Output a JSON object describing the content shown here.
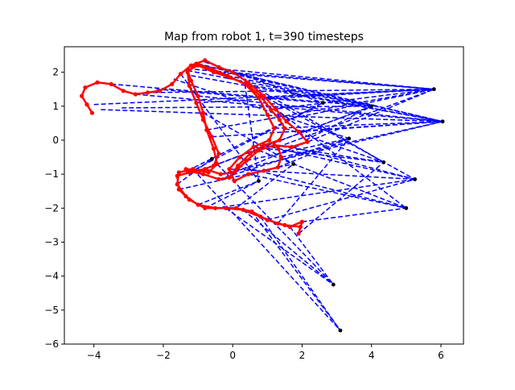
{
  "chart_data": {
    "type": "scatter",
    "title": "Map from robot 1, t=390 timesteps",
    "xlabel": "",
    "ylabel": "",
    "xlim": [
      -4.85,
      6.65
    ],
    "ylim": [
      -6.0,
      2.75
    ],
    "xticks": [
      -4,
      -2,
      0,
      2,
      4,
      6
    ],
    "yticks": [
      -6,
      -5,
      -4,
      -3,
      -2,
      -1,
      0,
      1,
      2
    ],
    "grid": false,
    "colors": {
      "trajectory": "#ff0000",
      "landmarks": "#000000",
      "observations": "#0000ff"
    },
    "landmarks": [
      [
        5.8,
        1.5
      ],
      [
        6.05,
        0.55
      ],
      [
        4.0,
        1.0
      ],
      [
        2.6,
        1.1
      ],
      [
        3.35,
        0.05
      ],
      [
        4.35,
        -0.65
      ],
      [
        5.25,
        -1.15
      ],
      [
        5.0,
        -2.0
      ],
      [
        1.75,
        -0.7
      ],
      [
        0.75,
        -1.2
      ],
      [
        -0.6,
        -0.55
      ],
      [
        2.9,
        -4.25
      ],
      [
        3.1,
        -5.6
      ]
    ],
    "trajectory": [
      [
        -4.05,
        0.8
      ],
      [
        -4.2,
        1.05
      ],
      [
        -4.35,
        1.3
      ],
      [
        -4.25,
        1.55
      ],
      [
        -3.9,
        1.7
      ],
      [
        -3.5,
        1.65
      ],
      [
        -3.15,
        1.45
      ],
      [
        -2.8,
        1.35
      ],
      [
        -2.45,
        1.4
      ],
      [
        -2.1,
        1.45
      ],
      [
        -1.75,
        1.65
      ],
      [
        -1.5,
        1.95
      ],
      [
        -1.2,
        2.2
      ],
      [
        -0.8,
        2.35
      ],
      [
        -0.4,
        2.15
      ],
      [
        0.0,
        2.0
      ],
      [
        0.45,
        1.7
      ],
      [
        0.9,
        1.3
      ],
      [
        1.25,
        0.9
      ],
      [
        1.55,
        0.55
      ],
      [
        1.9,
        0.25
      ],
      [
        2.15,
        -0.05
      ],
      [
        1.7,
        -0.2
      ],
      [
        1.2,
        -0.15
      ],
      [
        0.75,
        -0.3
      ],
      [
        0.4,
        -0.6
      ],
      [
        0.05,
        -0.95
      ],
      [
        -0.35,
        -1.0
      ],
      [
        -0.8,
        -0.85
      ],
      [
        -1.25,
        -0.95
      ],
      [
        -1.6,
        -1.05
      ],
      [
        -1.55,
        -1.45
      ],
      [
        -1.25,
        -1.75
      ],
      [
        -0.8,
        -2.0
      ],
      [
        -0.2,
        -2.0
      ],
      [
        0.3,
        -2.05
      ],
      [
        0.8,
        -2.25
      ],
      [
        1.3,
        -2.45
      ],
      [
        1.65,
        -2.55
      ],
      [
        2.0,
        -2.4
      ],
      [
        1.9,
        -2.75
      ],
      [
        1.95,
        -2.55
      ],
      [
        1.5,
        -2.5
      ],
      [
        1.0,
        -2.35
      ],
      [
        0.55,
        -2.1
      ],
      [
        0.1,
        -2.0
      ],
      [
        -0.5,
        -2.0
      ],
      [
        -1.0,
        -1.9
      ],
      [
        -1.35,
        -1.65
      ],
      [
        -1.6,
        -1.3
      ],
      [
        -1.55,
        -0.95
      ],
      [
        -1.15,
        -0.85
      ],
      [
        -0.7,
        -0.95
      ],
      [
        -0.45,
        -0.7
      ],
      [
        -0.55,
        -0.25
      ],
      [
        -0.75,
        0.3
      ],
      [
        -0.85,
        0.8
      ],
      [
        -1.0,
        1.3
      ],
      [
        -1.2,
        1.75
      ],
      [
        -1.3,
        2.05
      ],
      [
        -1.0,
        2.2
      ],
      [
        -0.55,
        2.0
      ],
      [
        -0.1,
        1.85
      ],
      [
        0.4,
        1.65
      ],
      [
        0.8,
        1.3
      ],
      [
        1.1,
        0.9
      ],
      [
        1.35,
        0.6
      ],
      [
        1.5,
        0.35
      ],
      [
        1.35,
        0.0
      ],
      [
        0.9,
        -0.15
      ],
      [
        0.5,
        -0.4
      ],
      [
        0.15,
        -0.75
      ],
      [
        -0.1,
        -1.1
      ],
      [
        -0.4,
        -1.15
      ],
      [
        -0.85,
        -1.0
      ],
      [
        -1.3,
        -0.9
      ],
      [
        -1.35,
        -0.85
      ],
      [
        -0.95,
        -0.9
      ],
      [
        -0.55,
        -0.75
      ],
      [
        -0.4,
        -0.4
      ],
      [
        -0.6,
        0.1
      ],
      [
        -0.85,
        0.6
      ],
      [
        -1.05,
        1.1
      ],
      [
        -1.25,
        1.6
      ],
      [
        -1.3,
        2.0
      ],
      [
        -1.05,
        2.25
      ],
      [
        -0.6,
        2.1
      ],
      [
        -0.15,
        1.9
      ],
      [
        0.35,
        1.65
      ],
      [
        0.75,
        1.25
      ],
      [
        1.0,
        0.75
      ],
      [
        1.2,
        0.35
      ],
      [
        1.05,
        0.0
      ],
      [
        0.6,
        -0.2
      ],
      [
        0.2,
        -0.5
      ],
      [
        -0.1,
        -0.85
      ],
      [
        0.05,
        -1.2
      ],
      [
        0.45,
        -1.0
      ],
      [
        0.9,
        -0.9
      ],
      [
        1.3,
        -0.8
      ],
      [
        1.4,
        -0.5
      ],
      [
        1.3,
        -0.2
      ]
    ],
    "observation_paths": [
      [
        [
          -4.0,
          1.05
        ],
        [
          5.8,
          1.5
        ]
      ],
      [
        [
          -3.8,
          0.9
        ],
        [
          6.05,
          0.55
        ]
      ],
      [
        [
          -3.2,
          0.95
        ],
        [
          4.0,
          1.0
        ]
      ],
      [
        [
          -2.5,
          1.4
        ],
        [
          5.8,
          1.5
        ]
      ],
      [
        [
          -2.2,
          1.5
        ],
        [
          2.6,
          1.1
        ]
      ],
      [
        [
          -1.7,
          1.8
        ],
        [
          3.35,
          0.05
        ]
      ],
      [
        [
          -1.3,
          2.1
        ],
        [
          5.8,
          1.5
        ]
      ],
      [
        [
          -1.2,
          1.9
        ],
        [
          6.05,
          0.55
        ]
      ],
      [
        [
          -1.0,
          2.25
        ],
        [
          4.0,
          1.0
        ]
      ],
      [
        [
          -0.8,
          2.3
        ],
        [
          2.6,
          1.1
        ]
      ],
      [
        [
          -0.4,
          2.1
        ],
        [
          5.8,
          1.5
        ]
      ],
      [
        [
          0.0,
          1.95
        ],
        [
          6.05,
          0.55
        ]
      ],
      [
        [
          0.4,
          1.7
        ],
        [
          4.35,
          -0.65
        ]
      ],
      [
        [
          0.8,
          1.35
        ],
        [
          5.25,
          -1.15
        ]
      ],
      [
        [
          1.2,
          0.95
        ],
        [
          5.0,
          -2.0
        ]
      ],
      [
        [
          1.5,
          0.6
        ],
        [
          5.8,
          1.5
        ]
      ],
      [
        [
          1.9,
          0.25
        ],
        [
          6.05,
          0.55
        ]
      ],
      [
        [
          2.1,
          0.0
        ],
        [
          4.0,
          1.0
        ]
      ],
      [
        [
          1.7,
          -0.2
        ],
        [
          5.25,
          -1.15
        ]
      ],
      [
        [
          1.2,
          -0.15
        ],
        [
          4.35,
          -0.65
        ]
      ],
      [
        [
          0.75,
          -0.3
        ],
        [
          5.0,
          -2.0
        ]
      ],
      [
        [
          0.4,
          -0.6
        ],
        [
          3.35,
          0.05
        ]
      ],
      [
        [
          0.05,
          -0.95
        ],
        [
          5.8,
          1.5
        ]
      ],
      [
        [
          -0.35,
          -1.0
        ],
        [
          6.05,
          0.55
        ]
      ],
      [
        [
          -0.8,
          -0.85
        ],
        [
          4.0,
          1.0
        ]
      ],
      [
        [
          -1.25,
          -0.95
        ],
        [
          2.6,
          1.1
        ]
      ],
      [
        [
          -1.55,
          -1.45
        ],
        [
          1.75,
          -0.7
        ]
      ],
      [
        [
          -0.8,
          -2.0
        ],
        [
          0.75,
          -1.2
        ]
      ],
      [
        [
          0.3,
          -2.05
        ],
        [
          2.9,
          -4.25
        ]
      ],
      [
        [
          0.8,
          -2.25
        ],
        [
          3.1,
          -5.6
        ]
      ],
      [
        [
          1.3,
          -2.45
        ],
        [
          3.35,
          0.05
        ]
      ],
      [
        [
          2.0,
          -2.4
        ],
        [
          5.0,
          -2.0
        ]
      ],
      [
        [
          1.9,
          -2.75
        ],
        [
          4.35,
          -0.65
        ]
      ],
      [
        [
          1.0,
          -2.35
        ],
        [
          5.25,
          -1.15
        ]
      ],
      [
        [
          0.1,
          -2.0
        ],
        [
          1.75,
          -0.7
        ]
      ],
      [
        [
          -1.0,
          -1.9
        ],
        [
          0.75,
          -1.2
        ]
      ],
      [
        [
          -1.6,
          -1.3
        ],
        [
          -0.6,
          -0.55
        ]
      ],
      [
        [
          -1.15,
          -0.85
        ],
        [
          3.1,
          -5.6
        ]
      ],
      [
        [
          -0.45,
          -0.7
        ],
        [
          2.9,
          -4.25
        ]
      ],
      [
        [
          -0.75,
          0.3
        ],
        [
          5.8,
          1.5
        ]
      ],
      [
        [
          -1.0,
          1.3
        ],
        [
          6.05,
          0.55
        ]
      ],
      [
        [
          -1.3,
          2.05
        ],
        [
          4.0,
          1.0
        ]
      ],
      [
        [
          -0.55,
          2.0
        ],
        [
          5.8,
          1.5
        ]
      ],
      [
        [
          0.4,
          1.65
        ],
        [
          6.05,
          0.55
        ]
      ],
      [
        [
          1.1,
          0.9
        ],
        [
          5.8,
          1.5
        ]
      ],
      [
        [
          1.5,
          0.35
        ],
        [
          4.35,
          -0.65
        ]
      ],
      [
        [
          0.9,
          -0.15
        ],
        [
          5.25,
          -1.15
        ]
      ],
      [
        [
          0.15,
          -0.75
        ],
        [
          5.0,
          -2.0
        ]
      ],
      [
        [
          -0.4,
          -1.15
        ],
        [
          3.35,
          0.05
        ]
      ],
      [
        [
          -1.3,
          -0.9
        ],
        [
          2.6,
          1.1
        ]
      ],
      [
        [
          -0.95,
          -0.9
        ],
        [
          4.0,
          1.0
        ]
      ],
      [
        [
          -0.6,
          0.1
        ],
        [
          6.05,
          0.55
        ]
      ],
      [
        [
          -1.05,
          1.1
        ],
        [
          5.8,
          1.5
        ]
      ],
      [
        [
          -1.05,
          2.25
        ],
        [
          6.05,
          0.55
        ]
      ],
      [
        [
          -0.15,
          1.9
        ],
        [
          4.0,
          1.0
        ]
      ],
      [
        [
          0.75,
          1.25
        ],
        [
          5.8,
          1.5
        ]
      ],
      [
        [
          1.2,
          0.35
        ],
        [
          6.05,
          0.55
        ]
      ],
      [
        [
          0.6,
          -0.2
        ],
        [
          4.35,
          -0.65
        ]
      ],
      [
        [
          -0.1,
          -0.85
        ],
        [
          5.25,
          -1.15
        ]
      ],
      [
        [
          0.45,
          -1.0
        ],
        [
          5.0,
          -2.0
        ]
      ],
      [
        [
          1.3,
          -0.8
        ],
        [
          3.35,
          0.05
        ]
      ],
      [
        [
          1.4,
          -0.5
        ],
        [
          6.05,
          0.55
        ]
      ],
      [
        [
          1.3,
          -0.2
        ],
        [
          5.8,
          1.5
        ]
      ],
      [
        [
          -0.2,
          -2.0
        ],
        [
          2.9,
          -4.25
        ]
      ],
      [
        [
          0.55,
          -2.1
        ],
        [
          3.1,
          -5.6
        ]
      ],
      [
        [
          1.65,
          -2.55
        ],
        [
          2.9,
          -4.25
        ]
      ],
      [
        [
          -1.5,
          1.95
        ],
        [
          0.75,
          -1.2
        ]
      ],
      [
        [
          -0.85,
          0.8
        ],
        [
          1.75,
          -0.7
        ]
      ],
      [
        [
          0.35,
          1.65
        ],
        [
          0.75,
          -1.2
        ]
      ],
      [
        [
          -2.8,
          1.35
        ],
        [
          6.05,
          0.55
        ]
      ],
      [
        [
          -3.5,
          1.65
        ],
        [
          4.0,
          1.0
        ]
      ],
      [
        [
          -0.5,
          -2.0
        ],
        [
          5.25,
          -1.15
        ]
      ]
    ]
  }
}
